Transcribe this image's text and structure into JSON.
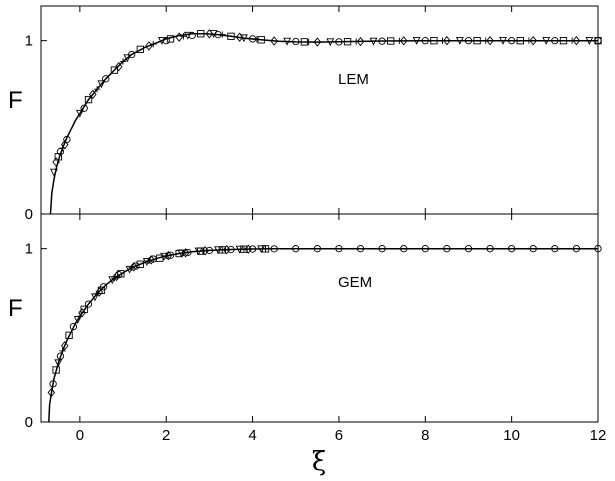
{
  "chart_data": [
    {
      "type": "scatter",
      "annotation": "LEM",
      "ylabel": "F",
      "xlim": [
        -0.9,
        12
      ],
      "ylim": [
        0,
        1.2
      ],
      "yticks": [
        "0",
        "1"
      ],
      "xticks": [],
      "curve": {
        "x": [
          -0.68,
          -0.65,
          -0.6,
          -0.55,
          -0.5,
          -0.4,
          -0.3,
          -0.2,
          -0.1,
          0.0,
          0.2,
          0.4,
          0.6,
          0.8,
          1.0,
          1.2,
          1.5,
          1.8,
          2.0,
          2.3,
          2.6,
          2.9,
          3.2,
          3.5,
          3.8,
          4.2,
          4.6,
          5.0,
          5.5,
          6.0,
          7.0,
          8.0,
          9.0,
          10.0,
          11.0,
          12.0
        ],
        "y": [
          0.0,
          0.12,
          0.2,
          0.26,
          0.31,
          0.38,
          0.44,
          0.49,
          0.54,
          0.58,
          0.66,
          0.72,
          0.78,
          0.83,
          0.88,
          0.92,
          0.96,
          0.99,
          1.01,
          1.03,
          1.04,
          1.04,
          1.035,
          1.025,
          1.015,
          1.005,
          0.997,
          0.993,
          0.992,
          0.994,
          0.998,
          1.0,
          1.0,
          1.0,
          1.0,
          1.0
        ]
      },
      "markers": {
        "circle": [
          [
            -0.45,
            0.36
          ],
          [
            -0.3,
            0.43
          ],
          [
            0.1,
            0.61
          ],
          [
            0.6,
            0.78
          ],
          [
            1.2,
            0.92
          ],
          [
            2.0,
            1.0
          ],
          [
            2.6,
            1.03
          ],
          [
            3.2,
            1.035
          ],
          [
            4.0,
            1.01
          ],
          [
            5.0,
            0.995
          ],
          [
            6.0,
            0.993
          ],
          [
            7.0,
            0.997
          ],
          [
            8.0,
            1.0
          ],
          [
            9.0,
            1.0
          ],
          [
            10.0,
            1.0
          ],
          [
            11.0,
            1.0
          ],
          [
            12.0,
            1.0
          ]
        ],
        "diamond": [
          [
            -0.55,
            0.3
          ],
          [
            -0.35,
            0.4
          ],
          [
            0.3,
            0.69
          ],
          [
            0.9,
            0.85
          ],
          [
            1.6,
            0.97
          ],
          [
            2.3,
            1.02
          ],
          [
            3.0,
            1.04
          ],
          [
            3.7,
            1.02
          ],
          [
            4.5,
            0.998
          ],
          [
            5.5,
            0.992
          ],
          [
            6.5,
            0.995
          ],
          [
            7.5,
            0.999
          ],
          [
            8.5,
            1.0
          ],
          [
            9.5,
            1.0
          ],
          [
            10.5,
            1.0
          ],
          [
            11.5,
            1.0
          ]
        ],
        "square": [
          [
            -0.5,
            0.33
          ],
          [
            0.2,
            0.66
          ],
          [
            0.8,
            0.83
          ],
          [
            1.4,
            0.95
          ],
          [
            2.1,
            1.01
          ],
          [
            2.8,
            1.04
          ],
          [
            3.5,
            1.025
          ],
          [
            4.2,
            1.005
          ],
          [
            5.2,
            0.993
          ],
          [
            6.2,
            0.994
          ],
          [
            7.2,
            0.998
          ],
          [
            8.2,
            1.0
          ],
          [
            9.2,
            1.0
          ],
          [
            10.2,
            1.0
          ],
          [
            11.2,
            1.0
          ],
          [
            12.0,
            1.0
          ]
        ],
        "triangle": [
          [
            -0.6,
            0.24
          ],
          [
            0.0,
            0.58
          ],
          [
            0.5,
            0.75
          ],
          [
            1.1,
            0.9
          ],
          [
            1.9,
            1.0
          ],
          [
            2.5,
            1.03
          ],
          [
            3.1,
            1.04
          ],
          [
            3.8,
            1.015
          ],
          [
            4.8,
            0.996
          ],
          [
            5.8,
            0.992
          ],
          [
            6.8,
            0.996
          ],
          [
            7.8,
            1.0
          ],
          [
            8.8,
            1.0
          ],
          [
            9.8,
            1.0
          ],
          [
            10.8,
            1.0
          ],
          [
            11.8,
            1.0
          ]
        ],
        "plus": [
          [
            -0.4,
            0.38
          ],
          [
            0.4,
            0.72
          ],
          [
            1.0,
            0.88
          ],
          [
            1.7,
            0.98
          ],
          [
            2.4,
            1.025
          ],
          [
            3.3,
            1.035
          ],
          [
            4.1,
            1.008
          ],
          [
            5.3,
            0.992
          ],
          [
            6.4,
            0.995
          ],
          [
            7.4,
            0.999
          ],
          [
            8.4,
            1.0
          ],
          [
            9.4,
            1.0
          ],
          [
            10.4,
            1.0
          ],
          [
            11.4,
            1.0
          ]
        ]
      }
    },
    {
      "type": "scatter",
      "annotation": "GEM",
      "ylabel": "F",
      "xlabel": "ξ",
      "xlim": [
        -0.9,
        12
      ],
      "ylim": [
        0,
        1.2
      ],
      "yticks": [
        "0",
        "1"
      ],
      "xticks": [
        "0",
        "2",
        "4",
        "6",
        "8",
        "10",
        "12"
      ],
      "curve": {
        "x": [
          -0.72,
          -0.7,
          -0.65,
          -0.6,
          -0.5,
          -0.4,
          -0.3,
          -0.2,
          -0.1,
          0.0,
          0.2,
          0.4,
          0.6,
          0.8,
          1.0,
          1.2,
          1.5,
          1.8,
          2.0,
          2.3,
          2.6,
          3.0,
          3.5,
          4.0,
          4.5,
          5.0,
          6.0,
          7.0,
          8.0,
          9.0,
          10.0,
          11.0,
          12.0
        ],
        "y": [
          0.0,
          0.1,
          0.18,
          0.25,
          0.34,
          0.41,
          0.47,
          0.52,
          0.57,
          0.61,
          0.68,
          0.74,
          0.79,
          0.83,
          0.86,
          0.89,
          0.92,
          0.945,
          0.958,
          0.972,
          0.982,
          0.99,
          0.995,
          0.998,
          0.999,
          1.0,
          1.0,
          1.0,
          1.0,
          1.0,
          1.0,
          1.0,
          1.0
        ]
      },
      "markers": {
        "circle": [
          [
            -0.62,
            0.22
          ],
          [
            -0.45,
            0.38
          ],
          [
            -0.15,
            0.55
          ],
          [
            0.2,
            0.68
          ],
          [
            0.55,
            0.78
          ],
          [
            0.9,
            0.85
          ],
          [
            1.3,
            0.9
          ],
          [
            1.7,
            0.94
          ],
          [
            2.1,
            0.962
          ],
          [
            2.5,
            0.978
          ],
          [
            3.0,
            0.99
          ],
          [
            3.5,
            0.995
          ],
          [
            4.0,
            0.998
          ],
          [
            4.5,
            0.999
          ],
          [
            5.0,
            1.0
          ],
          [
            5.5,
            1.0
          ],
          [
            6.0,
            1.0
          ],
          [
            6.5,
            1.0
          ],
          [
            7.0,
            1.0
          ],
          [
            7.5,
            1.0
          ],
          [
            8.0,
            1.0
          ],
          [
            8.5,
            1.0
          ],
          [
            9.0,
            1.0
          ],
          [
            9.5,
            1.0
          ],
          [
            10.0,
            1.0
          ],
          [
            10.5,
            1.0
          ],
          [
            11.0,
            1.0
          ],
          [
            11.5,
            1.0
          ],
          [
            12.0,
            1.0
          ]
        ],
        "diamond": [
          [
            -0.66,
            0.17
          ],
          [
            -0.35,
            0.44
          ],
          [
            0.05,
            0.63
          ],
          [
            0.45,
            0.75
          ],
          [
            0.85,
            0.84
          ],
          [
            1.25,
            0.895
          ],
          [
            1.65,
            0.935
          ],
          [
            2.05,
            0.96
          ],
          [
            2.45,
            0.976
          ],
          [
            2.9,
            0.988
          ],
          [
            3.4,
            0.994
          ],
          [
            3.9,
            0.997
          ]
        ],
        "square": [
          [
            -0.55,
            0.3
          ],
          [
            -0.25,
            0.5
          ],
          [
            0.1,
            0.65
          ],
          [
            0.5,
            0.76
          ],
          [
            0.95,
            0.855
          ],
          [
            1.4,
            0.91
          ],
          [
            1.85,
            0.945
          ],
          [
            2.3,
            0.972
          ],
          [
            2.8,
            0.986
          ],
          [
            3.3,
            0.993
          ],
          [
            3.8,
            0.997
          ],
          [
            4.3,
            0.999
          ]
        ],
        "triangle": [
          [
            -0.5,
            0.34
          ],
          [
            -0.05,
            0.59
          ],
          [
            0.35,
            0.72
          ],
          [
            0.75,
            0.82
          ],
          [
            1.15,
            0.88
          ],
          [
            1.55,
            0.925
          ],
          [
            1.95,
            0.955
          ],
          [
            2.35,
            0.974
          ],
          [
            2.75,
            0.985
          ],
          [
            3.2,
            0.992
          ],
          [
            3.7,
            0.996
          ],
          [
            4.2,
            0.998
          ]
        ],
        "plus": [
          [
            -0.4,
            0.41
          ],
          [
            0.0,
            0.61
          ],
          [
            0.4,
            0.74
          ],
          [
            0.8,
            0.83
          ],
          [
            1.2,
            0.89
          ],
          [
            1.6,
            0.93
          ],
          [
            2.0,
            0.958
          ],
          [
            2.4,
            0.976
          ],
          [
            2.85,
            0.987
          ],
          [
            3.3,
            0.993
          ],
          [
            3.8,
            0.997
          ],
          [
            4.3,
            0.999
          ]
        ]
      }
    }
  ]
}
